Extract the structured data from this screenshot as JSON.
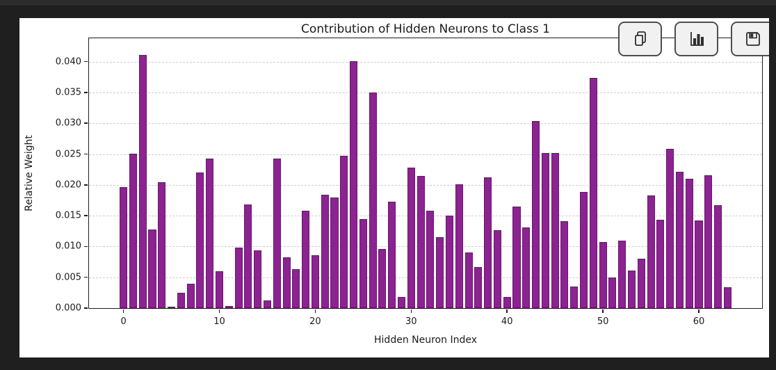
{
  "window": {
    "background": "#1f1f1f",
    "titlebar_background": "#2d2d2d",
    "figure_background": "#ffffff"
  },
  "toolbar": {
    "buttons": [
      {
        "name": "copy",
        "icon": "copy-icon"
      },
      {
        "name": "chart",
        "icon": "bar-chart-icon"
      },
      {
        "name": "save",
        "icon": "save-icon"
      }
    ]
  },
  "chart_data": {
    "type": "bar",
    "title": "Contribution of Hidden Neurons to Class 1",
    "xlabel": "Hidden Neuron Index",
    "ylabel": "Relative Weight",
    "categories": [
      0,
      1,
      2,
      3,
      4,
      5,
      6,
      7,
      8,
      9,
      10,
      11,
      12,
      13,
      14,
      15,
      16,
      17,
      18,
      19,
      20,
      21,
      22,
      23,
      24,
      25,
      26,
      27,
      28,
      29,
      30,
      31,
      32,
      33,
      34,
      35,
      36,
      37,
      38,
      39,
      40,
      41,
      42,
      43,
      44,
      45,
      46,
      47,
      48,
      49,
      50,
      51,
      52,
      53,
      54,
      55,
      56,
      57,
      58,
      59,
      60,
      61,
      62,
      63
    ],
    "values": [
      0.0196,
      0.0251,
      0.0411,
      0.0128,
      0.0204,
      0.0002,
      0.0025,
      0.004,
      0.022,
      0.0243,
      0.006,
      0.0003,
      0.0098,
      0.0168,
      0.0094,
      0.0012,
      0.0243,
      0.0082,
      0.0063,
      0.0158,
      0.0086,
      0.0184,
      0.0179,
      0.0247,
      0.0401,
      0.0145,
      0.035,
      0.0096,
      0.0173,
      0.0018,
      0.0228,
      0.0215,
      0.0158,
      0.0115,
      0.015,
      0.0201,
      0.009,
      0.0067,
      0.0212,
      0.0126,
      0.0018,
      0.0165,
      0.0131,
      0.0304,
      0.0252,
      0.0252,
      0.0141,
      0.0035,
      0.0189,
      0.0374,
      0.0107,
      0.005,
      0.0109,
      0.0061,
      0.008,
      0.0183,
      0.0143,
      0.0258,
      0.0221,
      0.021,
      0.0142,
      0.0216,
      0.0167,
      0.0034
    ],
    "bar_color": "#8b2390",
    "bar_edge_color": "#6d1273",
    "xticks": [
      0,
      10,
      20,
      30,
      40,
      50,
      60
    ],
    "yticks": [
      0.0,
      0.005,
      0.01,
      0.015,
      0.02,
      0.025,
      0.03,
      0.035,
      0.04
    ],
    "ytick_format_decimals": 3,
    "xlim": [
      -3.6,
      66.6
    ],
    "ylim": [
      0,
      0.0438
    ],
    "bar_width": 0.8,
    "grid": "horizontal-dashed",
    "grid_color": "#cdcdcd",
    "legend": "none"
  }
}
